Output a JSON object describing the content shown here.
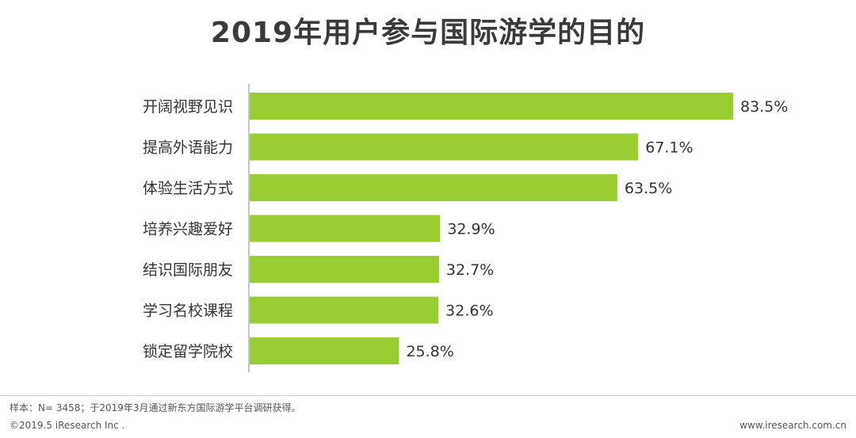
{
  "title": "2019年用户参与国际游学的目的",
  "colors": {
    "bar": "#9acd32",
    "axis": "#8c8c8c",
    "label": "#333333"
  },
  "chart_data": {
    "type": "bar",
    "orientation": "horizontal",
    "categories": [
      "开阔视野见识",
      "提高外语能力",
      "体验生活方式",
      "培养兴趣爱好",
      "结识国际朋友",
      "学习名校课程",
      "锁定留学院校"
    ],
    "values": [
      83.5,
      67.1,
      63.5,
      32.9,
      32.7,
      32.6,
      25.8
    ],
    "value_labels": [
      "83.5%",
      "67.1%",
      "63.5%",
      "32.9%",
      "32.7%",
      "32.6%",
      "25.8%"
    ],
    "title": "2019年用户参与国际游学的目的",
    "xlim": [
      0,
      83.5
    ],
    "grid": false,
    "legend": "none"
  },
  "footer": {
    "note": "样本：N= 3458；于2019年3月通过新东方国际游学平台调研获得。",
    "copyright": "©2019.5 iResearch Inc .",
    "site": "www.iresearch.com.cn"
  }
}
